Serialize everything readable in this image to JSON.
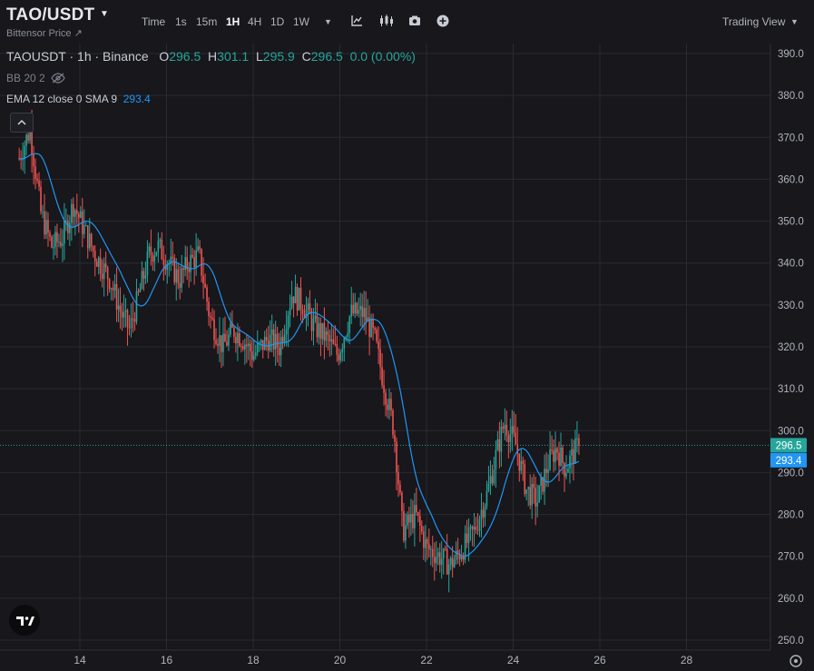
{
  "header": {
    "symbol": "TAO/USDT",
    "subtitle": "Bittensor Price ↗",
    "timeframes": [
      "Time",
      "1s",
      "15m",
      "1H",
      "4H",
      "1D",
      "1W"
    ],
    "active_timeframe": "1H",
    "right_label": "Trading View"
  },
  "legend": {
    "title": "TAOUSDT · 1h · Binance",
    "o_label": "O",
    "o": "296.5",
    "h_label": "H",
    "h": "301.1",
    "l_label": "L",
    "l": "295.9",
    "c_label": "C",
    "c": "296.5",
    "change": "0.0 (0.00%)",
    "bb": "BB 20 2",
    "ema": "EMA 12 close 0 SMA 9",
    "ema_value": "293.4"
  },
  "colors": {
    "up": "#26a69a",
    "down": "#ef5350",
    "ema": "#2196f3",
    "bg": "#17171c",
    "grid": "#2a2b31"
  },
  "chart_data": {
    "type": "candlestick",
    "x_tick_labels": [
      "14",
      "16",
      "18",
      "20",
      "22",
      "24",
      "26",
      "28"
    ],
    "y_ticks": [
      250,
      260,
      270,
      280,
      290,
      300,
      310,
      320,
      330,
      340,
      350,
      360,
      370,
      380,
      390
    ],
    "ylim": [
      248,
      393
    ],
    "last_price_label": "296.5",
    "ema_price_label": "293.4",
    "anchors": [
      [
        12.6,
        365
      ],
      [
        12.85,
        372
      ],
      [
        13.1,
        352
      ],
      [
        13.35,
        344
      ],
      [
        13.6,
        346
      ],
      [
        13.85,
        354
      ],
      [
        14.1,
        348
      ],
      [
        14.35,
        342
      ],
      [
        14.7,
        336
      ],
      [
        14.95,
        328
      ],
      [
        15.15,
        324
      ],
      [
        15.4,
        334
      ],
      [
        15.6,
        342
      ],
      [
        15.8,
        344
      ],
      [
        16.05,
        340
      ],
      [
        16.3,
        336
      ],
      [
        16.5,
        340
      ],
      [
        16.75,
        342
      ],
      [
        17.0,
        327
      ],
      [
        17.3,
        320
      ],
      [
        17.55,
        324
      ],
      [
        17.75,
        322
      ],
      [
        18.0,
        318
      ],
      [
        18.35,
        322
      ],
      [
        18.6,
        320
      ],
      [
        18.9,
        333
      ],
      [
        19.15,
        330
      ],
      [
        19.4,
        325
      ],
      [
        19.7,
        322
      ],
      [
        19.95,
        318
      ],
      [
        20.25,
        328
      ],
      [
        20.55,
        328
      ],
      [
        20.8,
        322
      ],
      [
        21.0,
        312
      ],
      [
        21.25,
        300
      ],
      [
        21.45,
        276
      ],
      [
        21.75,
        280
      ],
      [
        22.0,
        272
      ],
      [
        22.3,
        270
      ],
      [
        22.55,
        268
      ],
      [
        22.85,
        272
      ],
      [
        23.1,
        276
      ],
      [
        23.4,
        285
      ],
      [
        23.6,
        294
      ],
      [
        23.8,
        302
      ],
      [
        24.05,
        297
      ],
      [
        24.3,
        286
      ],
      [
        24.55,
        283
      ],
      [
        24.8,
        292
      ],
      [
        25.0,
        296
      ],
      [
        25.2,
        291
      ],
      [
        25.5,
        296.5
      ]
    ]
  }
}
